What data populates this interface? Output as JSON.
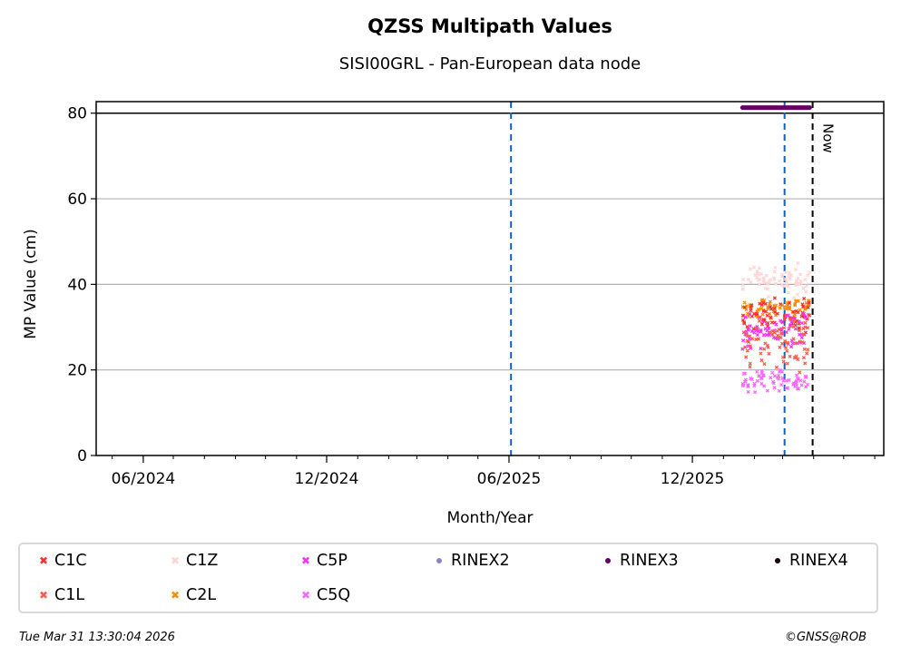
{
  "chart_data": {
    "type": "scatter",
    "title": "QZSS Multipath Values",
    "subtitle": "SISI00GRL - Pan-European data node",
    "xlabel": "Month/Year",
    "ylabel": "MP Value (cm)",
    "xlim": [
      "2024-04-15",
      "2026-06-10"
    ],
    "ylim": [
      0,
      82.7
    ],
    "grid": "y",
    "x_tick_labels": [
      "06/2024",
      "12/2024",
      "06/2025",
      "12/2025"
    ],
    "x_major_ticks": [
      "2024-06-01",
      "2024-12-01",
      "2025-06-01",
      "2025-12-01"
    ],
    "y_ticks": [
      0,
      20,
      40,
      60,
      80
    ],
    "y_tick_labels": [
      "0",
      "20",
      "40",
      "60",
      "80"
    ],
    "reference_lines": [
      {
        "name": "threshold",
        "type": "horizontal",
        "value": 80,
        "color": "#000000",
        "style": "solid"
      },
      {
        "name": "event-1",
        "type": "vertical",
        "date": "2025-06-03",
        "color": "#1060b8",
        "style": "dashed"
      },
      {
        "name": "event-2",
        "type": "vertical",
        "date": "2026-03-03",
        "color": "#1060b8",
        "style": "dashed"
      },
      {
        "name": "now",
        "type": "vertical",
        "date": "2026-03-31",
        "color": "#000000",
        "style": "dashed",
        "label": "Now"
      }
    ],
    "series": [
      {
        "name": "C1C",
        "marker": "x",
        "color": "#ff3030",
        "date_range": [
          "2026-01-20",
          "2026-03-28"
        ],
        "mean": 32.5,
        "spread": 4.5
      },
      {
        "name": "C1L",
        "marker": "x",
        "color": "#ff5a4a",
        "date_range": [
          "2026-01-20",
          "2026-03-28"
        ],
        "mean": 26,
        "spread": 7
      },
      {
        "name": "C1Z",
        "marker": "x",
        "color": "#ffd4d4",
        "date_range": [
          "2026-01-20",
          "2026-03-28"
        ],
        "mean": 41,
        "spread": 5
      },
      {
        "name": "C2L",
        "marker": "x",
        "color": "#ff8c00",
        "date_range": [
          "2026-01-20",
          "2026-03-28"
        ],
        "mean": 34.5,
        "spread": 2.8
      },
      {
        "name": "C5P",
        "marker": "x",
        "color": "#ff30ff",
        "date_range": [
          "2026-01-20",
          "2026-03-28"
        ],
        "mean": 29.5,
        "spread": 5
      },
      {
        "name": "C5Q",
        "marker": "x",
        "color": "#ff66ff",
        "date_range": [
          "2026-01-20",
          "2026-03-28"
        ],
        "mean": 17.5,
        "spread": 3
      },
      {
        "name": "RINEX2",
        "marker": "o",
        "color": "#8a84c4",
        "date_range": [],
        "value": null
      },
      {
        "name": "RINEX3",
        "marker": "o",
        "color": "#660066",
        "date_range": [
          "2026-01-20",
          "2026-03-28"
        ],
        "value": 81.3
      },
      {
        "name": "RINEX4",
        "marker": "o",
        "color": "#1a0010",
        "date_range": [],
        "value": null
      }
    ]
  },
  "legend": {
    "items": [
      "C1C",
      "C1Z",
      "C5P",
      "RINEX2",
      "RINEX3",
      "RINEX4",
      "C1L",
      "C2L",
      "C5Q"
    ]
  },
  "footer": {
    "timestamp": "Tue Mar 31 13:30:04 2026",
    "copyright": "©GNSS@ROB"
  }
}
